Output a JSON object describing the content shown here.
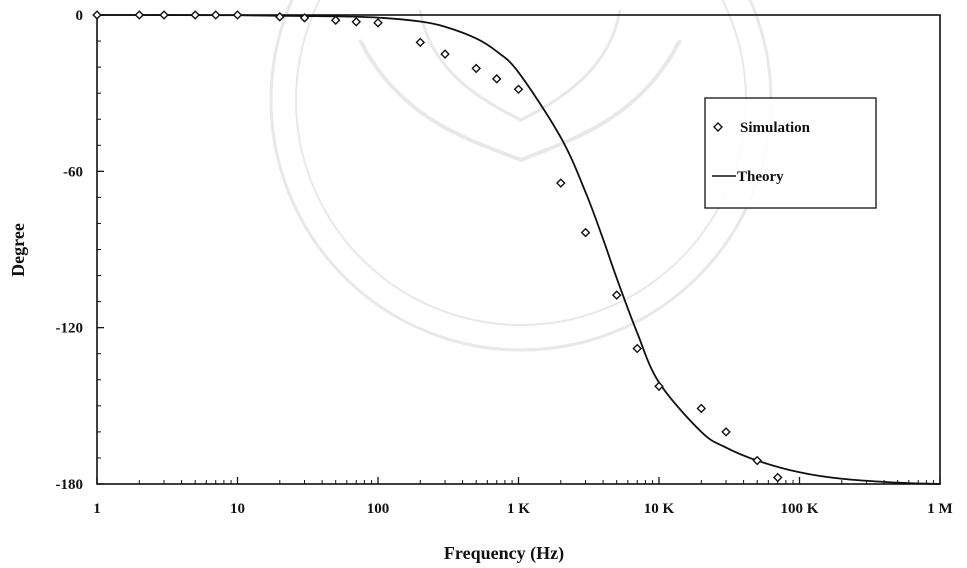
{
  "chart_data": {
    "type": "scatter",
    "title": "",
    "xlabel": "Frequency (Hz)",
    "ylabel": "Degree",
    "x_scale": "log",
    "xlim": [
      1,
      1000000
    ],
    "ylim": [
      -180,
      0
    ],
    "x_ticks": [
      {
        "value": 1,
        "label": "1"
      },
      {
        "value": 10,
        "label": "10"
      },
      {
        "value": 100,
        "label": "100"
      },
      {
        "value": 1000,
        "label": "1 K"
      },
      {
        "value": 10000,
        "label": "10 K"
      },
      {
        "value": 100000,
        "label": "100 K"
      },
      {
        "value": 1000000,
        "label": "1 M"
      }
    ],
    "y_ticks": [
      {
        "value": 0,
        "label": "0"
      },
      {
        "value": -60,
        "label": "-60"
      },
      {
        "value": -120,
        "label": "-120"
      },
      {
        "value": -180,
        "label": "-180"
      }
    ],
    "grid": false,
    "legend_position": "right",
    "series": [
      {
        "name": "Simulation",
        "kind": "scatter",
        "marker": "diamond",
        "x": [
          1,
          2,
          3,
          5,
          7,
          10,
          20,
          30,
          50,
          70,
          100,
          200,
          300,
          500,
          700,
          1000,
          2000,
          3000,
          5000,
          7000,
          10000,
          20000,
          30000,
          50000,
          70000
        ],
        "y": [
          0,
          0,
          0,
          0,
          0,
          0,
          -0.7,
          -1.1,
          -2,
          -2.6,
          -3,
          -10.5,
          -15,
          -20.5,
          -24.5,
          -28.5,
          -64.5,
          -83.5,
          -107.5,
          -128,
          -142.5,
          -151,
          -160,
          -171,
          -177.5
        ]
      },
      {
        "name": "Theory",
        "kind": "line",
        "x": [
          1,
          10,
          50,
          100,
          200,
          300,
          500,
          700,
          1000,
          2000,
          3000,
          4000,
          5000,
          7000,
          10000,
          20000,
          30000,
          50000,
          100000,
          200000,
          500000,
          1000000
        ],
        "y": [
          0,
          -0.1,
          -0.5,
          -1,
          -2.5,
          -4.5,
          -9,
          -14,
          -22,
          -47,
          -68,
          -86,
          -101,
          -122,
          -141,
          -160,
          -166,
          -171,
          -175.5,
          -178,
          -179.5,
          -180
        ]
      }
    ]
  }
}
